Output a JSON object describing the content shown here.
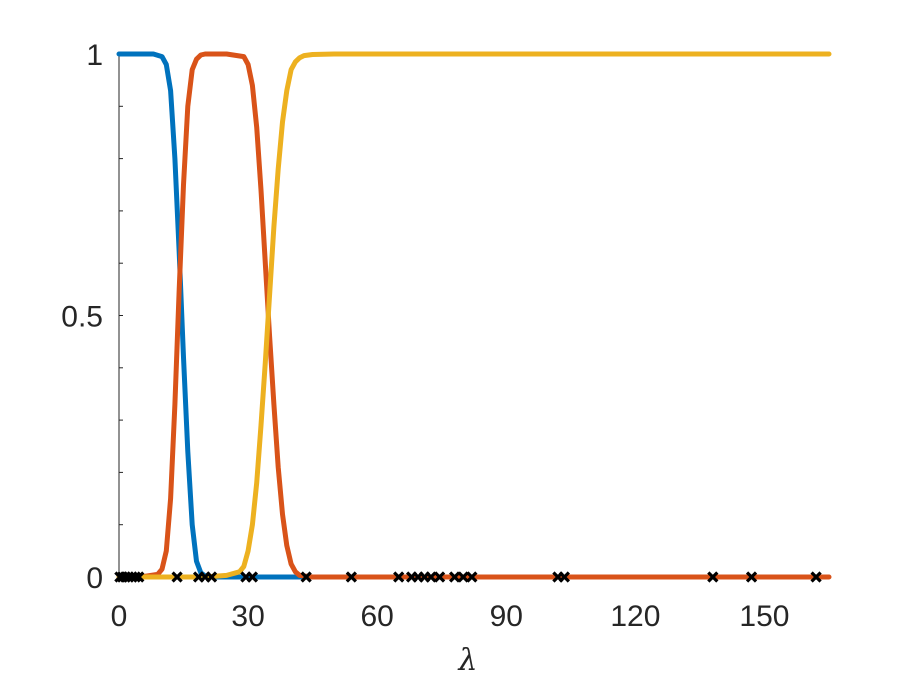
{
  "chart_data": {
    "type": "line",
    "title": "",
    "xlabel": "λ",
    "ylabel": "",
    "xlim": [
      0,
      165
    ],
    "ylim": [
      0,
      1
    ],
    "xticks": [
      0,
      30,
      60,
      90,
      120,
      150
    ],
    "xtick_labels": [
      "0",
      "30",
      "60",
      "90",
      "120",
      "150"
    ],
    "yticks": [
      0,
      0.5,
      1
    ],
    "ytick_labels": [
      "0",
      "0.5",
      "1"
    ],
    "grid": false,
    "legend": "none",
    "series": [
      {
        "color": "#0072BD",
        "x": [
          0,
          5,
          8,
          10,
          11,
          12,
          13,
          14,
          15,
          16,
          17,
          18,
          19,
          20,
          22,
          25,
          30,
          40,
          43
        ],
        "y": [
          1,
          1,
          1,
          0.995,
          0.98,
          0.93,
          0.8,
          0.62,
          0.42,
          0.24,
          0.1,
          0.03,
          0.008,
          0.002,
          0,
          0,
          0,
          0,
          0
        ]
      },
      {
        "color": "#D95319",
        "x": [
          0,
          5,
          9,
          10,
          11,
          12,
          13,
          14,
          15,
          16,
          17,
          18,
          19,
          20,
          25,
          29,
          30,
          31,
          32,
          33,
          34,
          35,
          36,
          37,
          38,
          39,
          40,
          41,
          42,
          45,
          60,
          90,
          120,
          150,
          165
        ],
        "y": [
          0,
          0,
          0.005,
          0.015,
          0.05,
          0.15,
          0.33,
          0.55,
          0.75,
          0.9,
          0.97,
          0.99,
          0.998,
          1,
          1,
          0.995,
          0.98,
          0.94,
          0.86,
          0.74,
          0.6,
          0.46,
          0.33,
          0.21,
          0.12,
          0.06,
          0.025,
          0.01,
          0.003,
          0,
          0,
          0,
          0,
          0,
          0
        ]
      },
      {
        "color": "#EDB120",
        "x": [
          0,
          20,
          25,
          28,
          29,
          30,
          31,
          32,
          33,
          34,
          35,
          36,
          37,
          38,
          39,
          40,
          41,
          42,
          43,
          45,
          50,
          60,
          90,
          120,
          150,
          165
        ],
        "y": [
          0,
          0,
          0.003,
          0.01,
          0.02,
          0.05,
          0.1,
          0.18,
          0.29,
          0.41,
          0.54,
          0.67,
          0.78,
          0.87,
          0.93,
          0.97,
          0.985,
          0.993,
          0.997,
          0.999,
          1,
          1,
          1,
          1,
          1,
          1
        ]
      }
    ],
    "markers": {
      "color": "#000000",
      "symbol": "x",
      "x": [
        0.2,
        0.8,
        1.5,
        2.2,
        3,
        3.8,
        4.6,
        13.5,
        18.5,
        20,
        21.5,
        29.5,
        31,
        43.5,
        54,
        65,
        68,
        69.5,
        71,
        72.5,
        74.5,
        78,
        80,
        82,
        102,
        103.5,
        138,
        147,
        162
      ]
    }
  }
}
